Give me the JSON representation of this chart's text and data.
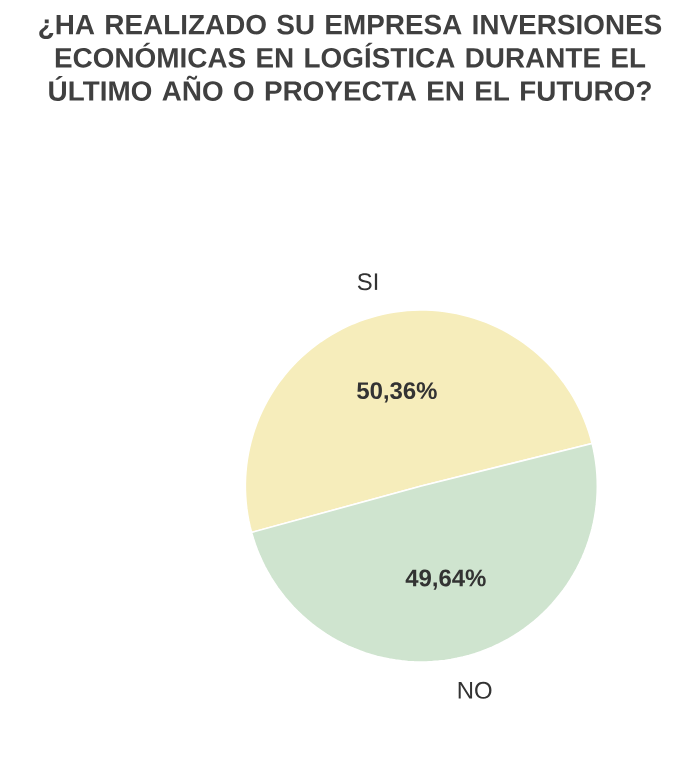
{
  "chart_data": {
    "type": "pie",
    "title": "¿HA REALIZADO SU EMPRESA INVERSIONES ECONÓMICAS EN LOGÍSTICA DURANTE EL ÚLTIMO AÑO O PROYECTA EN EL FUTURO?",
    "categories": [
      "SI",
      "NO"
    ],
    "values": [
      50.36,
      49.64
    ],
    "colors": [
      "#f6edbb",
      "#cfe4cf"
    ],
    "value_labels": [
      "50,36%",
      "49,64%"
    ]
  }
}
